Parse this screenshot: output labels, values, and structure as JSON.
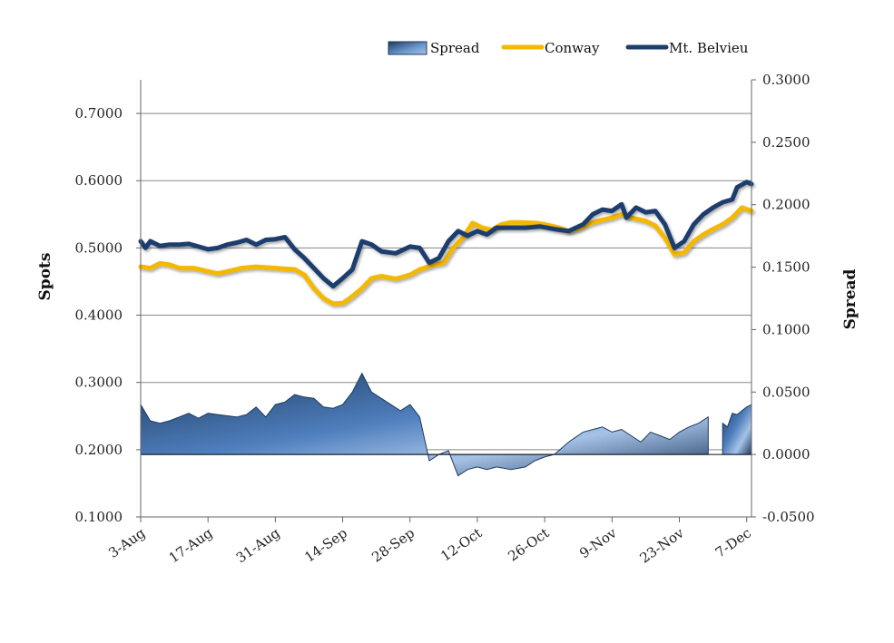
{
  "chart_data": {
    "type": "line",
    "title": "",
    "legend": {
      "placement": "top-right",
      "entries": [
        "Spread",
        "Conway",
        "Mt. Belvieu"
      ]
    },
    "colors": {
      "conway": "#F5B800",
      "belvieu": "#1F3E6E",
      "spread_dark": "#1E3A5F",
      "spread_mid": "#4F7FBE",
      "spread_light": "#A6C2E6",
      "gridline": "#888888",
      "axis": "#666666"
    },
    "x_axis": {
      "label": "",
      "tick_labels": [
        "3-Aug",
        "17-Aug",
        "31-Aug",
        "14-Sep",
        "28-Sep",
        "12-Oct",
        "26-Oct",
        "9-Nov",
        "23-Nov",
        "7-Dec"
      ],
      "range": [
        "3-Aug",
        "8-Dec"
      ]
    },
    "y_axis_left": {
      "label": "Spots",
      "range": [
        0.1,
        0.75
      ],
      "tick_labels": [
        "0.1000",
        "0.2000",
        "0.3000",
        "0.4000",
        "0.5000",
        "0.6000",
        "0.7000"
      ],
      "tick_values": [
        0.1,
        0.2,
        0.3,
        0.4,
        0.5,
        0.6,
        0.7
      ],
      "gridlines": true
    },
    "y_axis_right": {
      "label": "Spread",
      "range": [
        -0.05,
        0.3
      ],
      "tick_labels": [
        "-0.0500",
        "0.0000",
        "0.0500",
        "0.1000",
        "0.1500",
        "0.2000",
        "0.2500",
        "0.3000"
      ],
      "tick_values": [
        -0.05,
        0.0,
        0.05,
        0.1,
        0.15,
        0.2,
        0.25,
        0.3
      ]
    },
    "series": [
      {
        "name": "Conway",
        "axis": "left",
        "type": "line",
        "points": [
          [
            "3-Aug",
            0.472
          ],
          [
            "5-Aug",
            0.47
          ],
          [
            "7-Aug",
            0.477
          ],
          [
            "9-Aug",
            0.475
          ],
          [
            "11-Aug",
            0.47
          ],
          [
            "14-Aug",
            0.47
          ],
          [
            "17-Aug",
            0.465
          ],
          [
            "19-Aug",
            0.462
          ],
          [
            "21-Aug",
            0.465
          ],
          [
            "24-Aug",
            0.47
          ],
          [
            "27-Aug",
            0.472
          ],
          [
            "31-Aug",
            0.47
          ],
          [
            "4-Sep",
            0.468
          ],
          [
            "6-Sep",
            0.46
          ],
          [
            "8-Sep",
            0.44
          ],
          [
            "10-Sep",
            0.425
          ],
          [
            "12-Sep",
            0.417
          ],
          [
            "14-Sep",
            0.418
          ],
          [
            "16-Sep",
            0.428
          ],
          [
            "18-Sep",
            0.44
          ],
          [
            "20-Sep",
            0.455
          ],
          [
            "22-Sep",
            0.458
          ],
          [
            "25-Sep",
            0.454
          ],
          [
            "28-Sep",
            0.46
          ],
          [
            "30-Sep",
            0.468
          ],
          [
            "3-Oct",
            0.475
          ],
          [
            "5-Oct",
            0.478
          ],
          [
            "7-Oct",
            0.5
          ],
          [
            "9-Oct",
            0.515
          ],
          [
            "11-Oct",
            0.537
          ],
          [
            "13-Oct",
            0.53
          ],
          [
            "15-Oct",
            0.527
          ],
          [
            "17-Oct",
            0.535
          ],
          [
            "19-Oct",
            0.538
          ],
          [
            "21-Oct",
            0.538
          ],
          [
            "24-Oct",
            0.537
          ],
          [
            "26-Oct",
            0.535
          ],
          [
            "29-Oct",
            0.53
          ],
          [
            "31-Oct",
            0.525
          ],
          [
            "2-Nov",
            0.528
          ],
          [
            "4-Nov",
            0.535
          ],
          [
            "6-Nov",
            0.54
          ],
          [
            "9-Nov",
            0.545
          ],
          [
            "11-Nov",
            0.55
          ],
          [
            "13-Nov",
            0.545
          ],
          [
            "16-Nov",
            0.54
          ],
          [
            "18-Nov",
            0.533
          ],
          [
            "20-Nov",
            0.515
          ],
          [
            "22-Nov",
            0.49
          ],
          [
            "24-Nov",
            0.493
          ],
          [
            "26-Nov",
            0.51
          ],
          [
            "28-Nov",
            0.52
          ],
          [
            "30-Nov",
            0.528
          ],
          [
            "2-Dec",
            0.535
          ],
          [
            "4-Dec",
            0.545
          ],
          [
            "6-Dec",
            0.56
          ],
          [
            "8-Dec",
            0.555
          ]
        ]
      },
      {
        "name": "Mt. Belvieu",
        "axis": "left",
        "type": "line",
        "points": [
          [
            "3-Aug",
            0.51
          ],
          [
            "4-Aug",
            0.5
          ],
          [
            "5-Aug",
            0.51
          ],
          [
            "7-Aug",
            0.503
          ],
          [
            "9-Aug",
            0.505
          ],
          [
            "11-Aug",
            0.505
          ],
          [
            "13-Aug",
            0.506
          ],
          [
            "15-Aug",
            0.502
          ],
          [
            "17-Aug",
            0.498
          ],
          [
            "19-Aug",
            0.5
          ],
          [
            "21-Aug",
            0.505
          ],
          [
            "23-Aug",
            0.508
          ],
          [
            "25-Aug",
            0.512
          ],
          [
            "27-Aug",
            0.505
          ],
          [
            "29-Aug",
            0.512
          ],
          [
            "31-Aug",
            0.513
          ],
          [
            "2-Sep",
            0.516
          ],
          [
            "4-Sep",
            0.498
          ],
          [
            "6-Sep",
            0.485
          ],
          [
            "8-Sep",
            0.47
          ],
          [
            "10-Sep",
            0.455
          ],
          [
            "12-Sep",
            0.443
          ],
          [
            "14-Sep",
            0.455
          ],
          [
            "16-Sep",
            0.468
          ],
          [
            "18-Sep",
            0.51
          ],
          [
            "20-Sep",
            0.505
          ],
          [
            "22-Sep",
            0.495
          ],
          [
            "25-Sep",
            0.492
          ],
          [
            "28-Sep",
            0.502
          ],
          [
            "30-Sep",
            0.5
          ],
          [
            "2-Oct",
            0.478
          ],
          [
            "4-Oct",
            0.485
          ],
          [
            "6-Oct",
            0.51
          ],
          [
            "8-Oct",
            0.525
          ],
          [
            "10-Oct",
            0.518
          ],
          [
            "12-Oct",
            0.525
          ],
          [
            "14-Oct",
            0.52
          ],
          [
            "16-Oct",
            0.53
          ],
          [
            "19-Oct",
            0.53
          ],
          [
            "22-Oct",
            0.53
          ],
          [
            "25-Oct",
            0.532
          ],
          [
            "28-Oct",
            0.528
          ],
          [
            "31-Oct",
            0.525
          ],
          [
            "3-Nov",
            0.535
          ],
          [
            "5-Nov",
            0.55
          ],
          [
            "7-Nov",
            0.557
          ],
          [
            "9-Nov",
            0.555
          ],
          [
            "11-Nov",
            0.565
          ],
          [
            "12-Nov",
            0.545
          ],
          [
            "14-Nov",
            0.56
          ],
          [
            "16-Nov",
            0.553
          ],
          [
            "18-Nov",
            0.555
          ],
          [
            "20-Nov",
            0.535
          ],
          [
            "22-Nov",
            0.5
          ],
          [
            "24-Nov",
            0.51
          ],
          [
            "26-Nov",
            0.535
          ],
          [
            "28-Nov",
            0.55
          ],
          [
            "30-Nov",
            0.56
          ],
          [
            "2-Dec",
            0.568
          ],
          [
            "4-Dec",
            0.572
          ],
          [
            "5-Dec",
            0.59
          ],
          [
            "7-Dec",
            0.598
          ],
          [
            "8-Dec",
            0.595
          ]
        ]
      },
      {
        "name": "Spread",
        "axis": "right",
        "type": "area",
        "points": [
          [
            "3-Aug",
            0.04
          ],
          [
            "5-Aug",
            0.027
          ],
          [
            "7-Aug",
            0.025
          ],
          [
            "9-Aug",
            0.027
          ],
          [
            "11-Aug",
            0.03
          ],
          [
            "13-Aug",
            0.033
          ],
          [
            "15-Aug",
            0.029
          ],
          [
            "17-Aug",
            0.033
          ],
          [
            "19-Aug",
            0.032
          ],
          [
            "21-Aug",
            0.031
          ],
          [
            "23-Aug",
            0.03
          ],
          [
            "25-Aug",
            0.032
          ],
          [
            "27-Aug",
            0.038
          ],
          [
            "29-Aug",
            0.03
          ],
          [
            "31-Aug",
            0.04
          ],
          [
            "2-Sep",
            0.042
          ],
          [
            "4-Sep",
            0.048
          ],
          [
            "6-Sep",
            0.046
          ],
          [
            "8-Sep",
            0.045
          ],
          [
            "10-Sep",
            0.038
          ],
          [
            "12-Sep",
            0.037
          ],
          [
            "14-Sep",
            0.04
          ],
          [
            "16-Sep",
            0.05
          ],
          [
            "18-Sep",
            0.065
          ],
          [
            "20-Sep",
            0.05
          ],
          [
            "22-Sep",
            0.045
          ],
          [
            "24-Sep",
            0.04
          ],
          [
            "26-Sep",
            0.035
          ],
          [
            "28-Sep",
            0.04
          ],
          [
            "30-Sep",
            0.03
          ],
          [
            "2-Oct",
            -0.005
          ],
          [
            "4-Oct",
            0.0
          ],
          [
            "6-Oct",
            0.003
          ],
          [
            "8-Oct",
            -0.017
          ],
          [
            "10-Oct",
            -0.012
          ],
          [
            "12-Oct",
            -0.01
          ],
          [
            "14-Oct",
            -0.012
          ],
          [
            "16-Oct",
            -0.01
          ],
          [
            "19-Oct",
            -0.012
          ],
          [
            "22-Oct",
            -0.01
          ],
          [
            "24-Oct",
            -0.005
          ],
          [
            "26-Oct",
            -0.002
          ],
          [
            "28-Oct",
            0.0
          ],
          [
            "31-Oct",
            0.01
          ],
          [
            "3-Nov",
            0.018
          ],
          [
            "5-Nov",
            0.02
          ],
          [
            "7-Nov",
            0.022
          ],
          [
            "9-Nov",
            0.018
          ],
          [
            "11-Nov",
            0.02
          ],
          [
            "13-Nov",
            0.015
          ],
          [
            "15-Nov",
            0.01
          ],
          [
            "17-Nov",
            0.018
          ],
          [
            "19-Nov",
            0.015
          ],
          [
            "21-Nov",
            0.012
          ],
          [
            "23-Nov",
            0.018
          ],
          [
            "25-Nov",
            0.022
          ],
          [
            "27-Nov",
            0.025
          ],
          [
            "29-Nov",
            0.03
          ]
        ],
        "gap": [
          "30-Nov",
          "1-Dec"
        ],
        "points_after_gap": [
          [
            "2-Dec",
            0.025
          ],
          [
            "3-Dec",
            0.022
          ],
          [
            "4-Dec",
            0.033
          ],
          [
            "5-Dec",
            0.032
          ],
          [
            "6-Dec",
            0.035
          ],
          [
            "7-Dec",
            0.038
          ],
          [
            "8-Dec",
            0.04
          ]
        ]
      }
    ]
  }
}
